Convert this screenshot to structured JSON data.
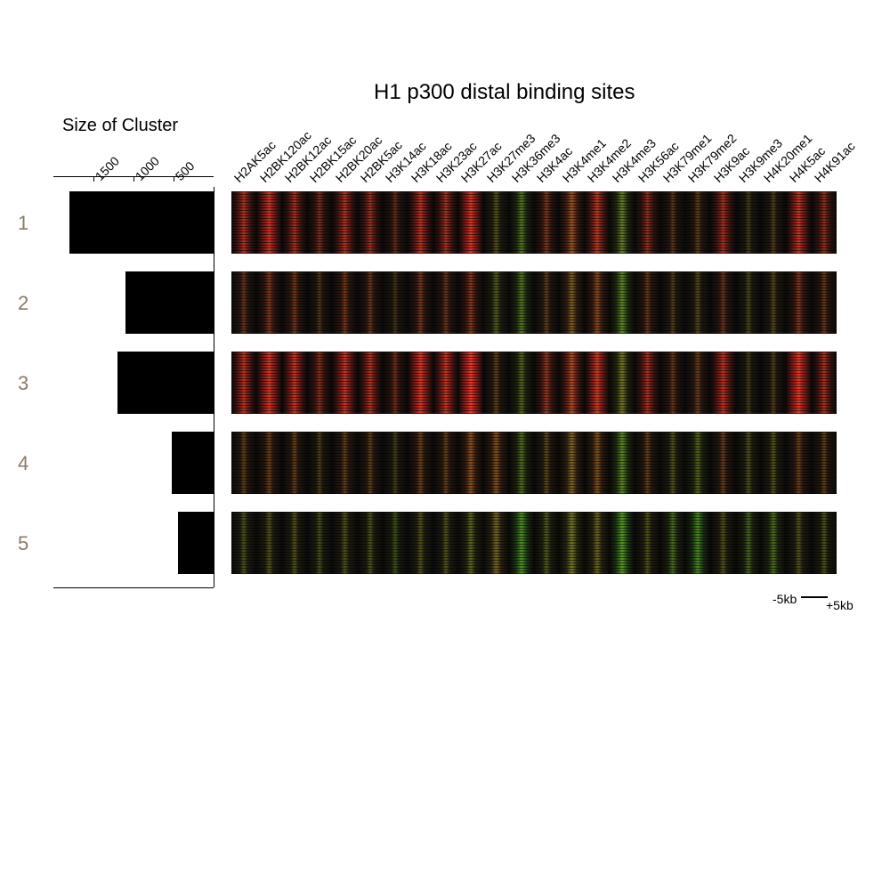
{
  "figure": {
    "title": "H1 p300 distal binding sites",
    "title_fontsize": 24,
    "background": "#ffffff",
    "bar_chart": {
      "title": "Size of Cluster",
      "axis_ticks": [
        1500,
        1000,
        500
      ],
      "axis_max": 2000,
      "bar_color": "#000000"
    },
    "cluster_label_color": "#8a7a6a",
    "cluster_label_fontsize": 22,
    "scale": {
      "left": "-5kb",
      "right": "+5kb"
    },
    "marks": [
      "H2AK5ac",
      "H2BK120ac",
      "H2BK12ac",
      "H2BK15ac",
      "H2BK20ac",
      "H2BK5ac",
      "H3K14ac",
      "H3K18ac",
      "H3K23ac",
      "H3K27ac",
      "H3K27me3",
      "H3K36me3",
      "H3K4ac",
      "H3K4me1",
      "H3K4me2",
      "H3K4me3",
      "H3K56ac",
      "H3K79me1",
      "H3K79me2",
      "H3K9ac",
      "H3K9me3",
      "H4K20me1",
      "H4K5ac",
      "H4K91ac"
    ],
    "clusters": [
      {
        "id": "1",
        "size": 1800,
        "intensity": [
          [
            60,
            5
          ],
          [
            75,
            5
          ],
          [
            55,
            5
          ],
          [
            35,
            5
          ],
          [
            60,
            5
          ],
          [
            50,
            5
          ],
          [
            25,
            5
          ],
          [
            65,
            5
          ],
          [
            55,
            5
          ],
          [
            80,
            5
          ],
          [
            15,
            25
          ],
          [
            15,
            45
          ],
          [
            35,
            10
          ],
          [
            50,
            25
          ],
          [
            65,
            10
          ],
          [
            25,
            50
          ],
          [
            45,
            5
          ],
          [
            20,
            10
          ],
          [
            20,
            15
          ],
          [
            55,
            5
          ],
          [
            10,
            15
          ],
          [
            15,
            15
          ],
          [
            70,
            5
          ],
          [
            45,
            5
          ]
        ]
      },
      {
        "id": "2",
        "size": 1100,
        "intensity": [
          [
            25,
            10
          ],
          [
            35,
            10
          ],
          [
            30,
            10
          ],
          [
            15,
            10
          ],
          [
            30,
            10
          ],
          [
            25,
            10
          ],
          [
            10,
            10
          ],
          [
            30,
            10
          ],
          [
            25,
            10
          ],
          [
            40,
            10
          ],
          [
            15,
            30
          ],
          [
            15,
            45
          ],
          [
            20,
            15
          ],
          [
            35,
            30
          ],
          [
            40,
            20
          ],
          [
            20,
            55
          ],
          [
            25,
            10
          ],
          [
            15,
            15
          ],
          [
            15,
            20
          ],
          [
            25,
            10
          ],
          [
            10,
            20
          ],
          [
            15,
            20
          ],
          [
            35,
            10
          ],
          [
            25,
            10
          ]
        ]
      },
      {
        "id": "3",
        "size": 1200,
        "intensity": [
          [
            65,
            5
          ],
          [
            80,
            5
          ],
          [
            70,
            5
          ],
          [
            40,
            5
          ],
          [
            70,
            5
          ],
          [
            60,
            5
          ],
          [
            30,
            5
          ],
          [
            80,
            5
          ],
          [
            70,
            5
          ],
          [
            90,
            5
          ],
          [
            20,
            15
          ],
          [
            15,
            35
          ],
          [
            45,
            10
          ],
          [
            60,
            20
          ],
          [
            75,
            10
          ],
          [
            30,
            45
          ],
          [
            55,
            5
          ],
          [
            25,
            10
          ],
          [
            25,
            15
          ],
          [
            65,
            5
          ],
          [
            10,
            15
          ],
          [
            15,
            15
          ],
          [
            85,
            5
          ],
          [
            55,
            5
          ]
        ]
      },
      {
        "id": "4",
        "size": 520,
        "intensity": [
          [
            20,
            15
          ],
          [
            25,
            15
          ],
          [
            22,
            15
          ],
          [
            12,
            15
          ],
          [
            22,
            15
          ],
          [
            20,
            15
          ],
          [
            10,
            15
          ],
          [
            25,
            15
          ],
          [
            22,
            15
          ],
          [
            40,
            25
          ],
          [
            35,
            25
          ],
          [
            15,
            40
          ],
          [
            18,
            20
          ],
          [
            35,
            35
          ],
          [
            35,
            25
          ],
          [
            20,
            55
          ],
          [
            22,
            15
          ],
          [
            15,
            25
          ],
          [
            15,
            35
          ],
          [
            22,
            15
          ],
          [
            12,
            25
          ],
          [
            15,
            25
          ],
          [
            25,
            15
          ],
          [
            20,
            15
          ]
        ]
      },
      {
        "id": "5",
        "size": 450,
        "intensity": [
          [
            12,
            25
          ],
          [
            15,
            25
          ],
          [
            14,
            25
          ],
          [
            8,
            25
          ],
          [
            14,
            25
          ],
          [
            12,
            25
          ],
          [
            7,
            25
          ],
          [
            14,
            25
          ],
          [
            14,
            25
          ],
          [
            20,
            35
          ],
          [
            30,
            35
          ],
          [
            12,
            60
          ],
          [
            12,
            30
          ],
          [
            30,
            45
          ],
          [
            25,
            35
          ],
          [
            15,
            65
          ],
          [
            14,
            25
          ],
          [
            10,
            40
          ],
          [
            10,
            55
          ],
          [
            14,
            25
          ],
          [
            10,
            35
          ],
          [
            12,
            40
          ],
          [
            15,
            25
          ],
          [
            12,
            25
          ]
        ]
      }
    ],
    "heatmap_colors": {
      "background": "#0a0a0a",
      "red": "#ff2020",
      "dark_red": "#6a0c0c",
      "green": "#20c820",
      "dark_green": "#0c4a0c"
    }
  }
}
